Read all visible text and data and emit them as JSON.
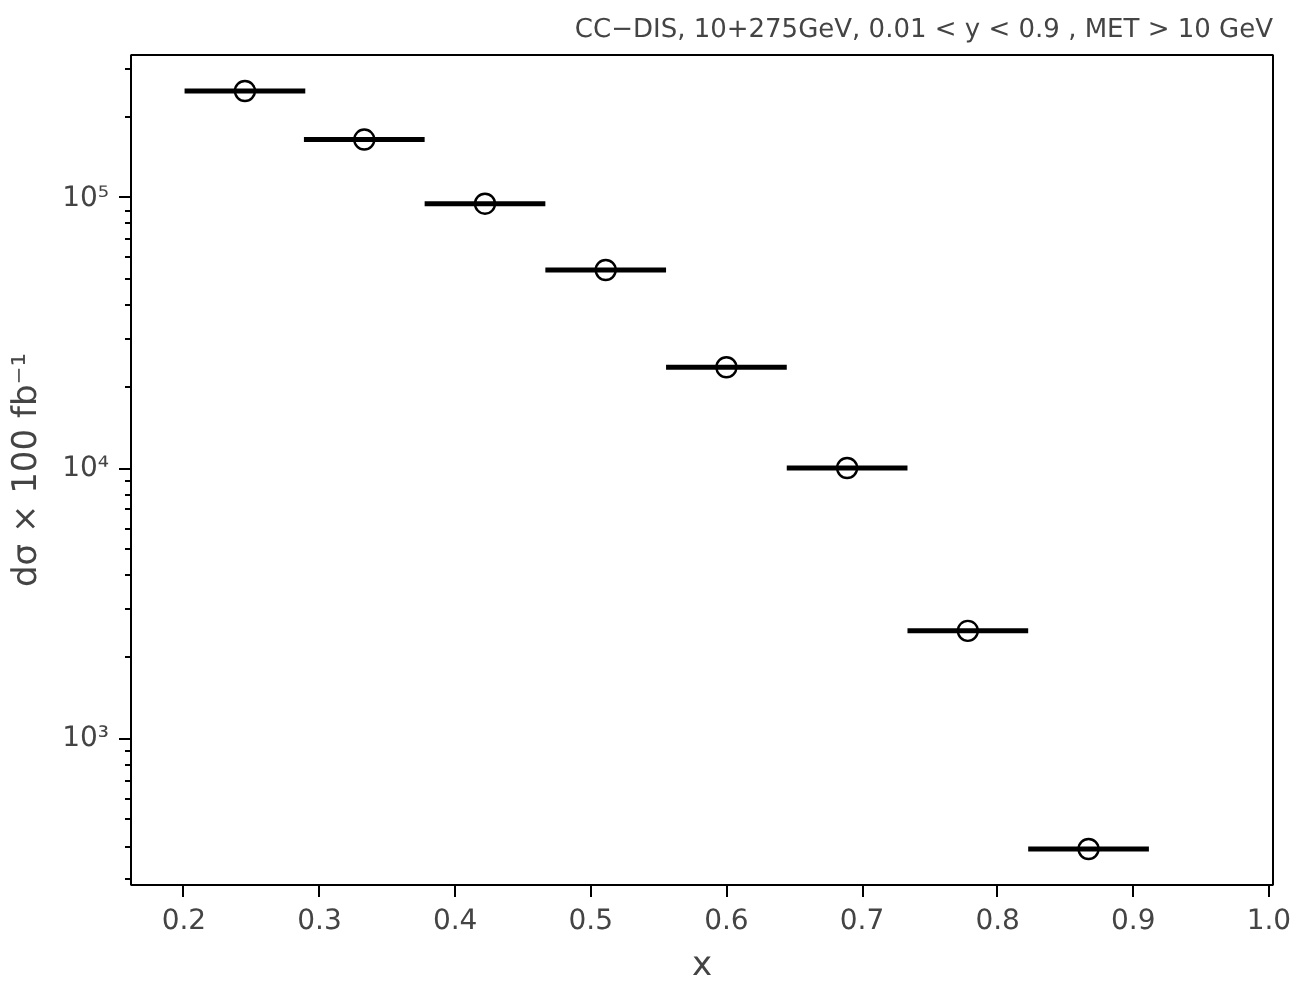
{
  "chart_data": {
    "type": "scatter",
    "title": "CC−DIS, 10+275GeV, 0.01 < y < 0.9 , MET > 10 GeV",
    "xlabel": "x",
    "ylabel": "dσ × 100 fb⁻¹",
    "x": [
      0.245,
      0.333,
      0.422,
      0.511,
      0.6,
      0.689,
      0.778,
      0.867
    ],
    "values": [
      248000,
      164000,
      95000,
      54000,
      23600,
      10000,
      2500,
      390
    ],
    "xerrors": [
      0.0445,
      0.0445,
      0.0445,
      0.0445,
      0.0445,
      0.0445,
      0.0445,
      0.0445
    ],
    "color": "#000000",
    "marker": "circle",
    "log": "y",
    "xlim": [
      0.161,
      1.003
    ],
    "xticks": [
      0.2,
      0.3,
      0.4,
      0.5,
      0.6,
      0.7,
      0.8,
      0.9,
      {
        "value": 1,
        "label": "1.0"
      }
    ],
    "ylim": [
      287,
      337000
    ],
    "yticks": [
      {
        "value": 1000,
        "label": "10³"
      },
      {
        "value": 10000,
        "label": "10⁴"
      },
      {
        "value": 100000,
        "label": "10⁵"
      }
    ],
    "grid": false
  }
}
